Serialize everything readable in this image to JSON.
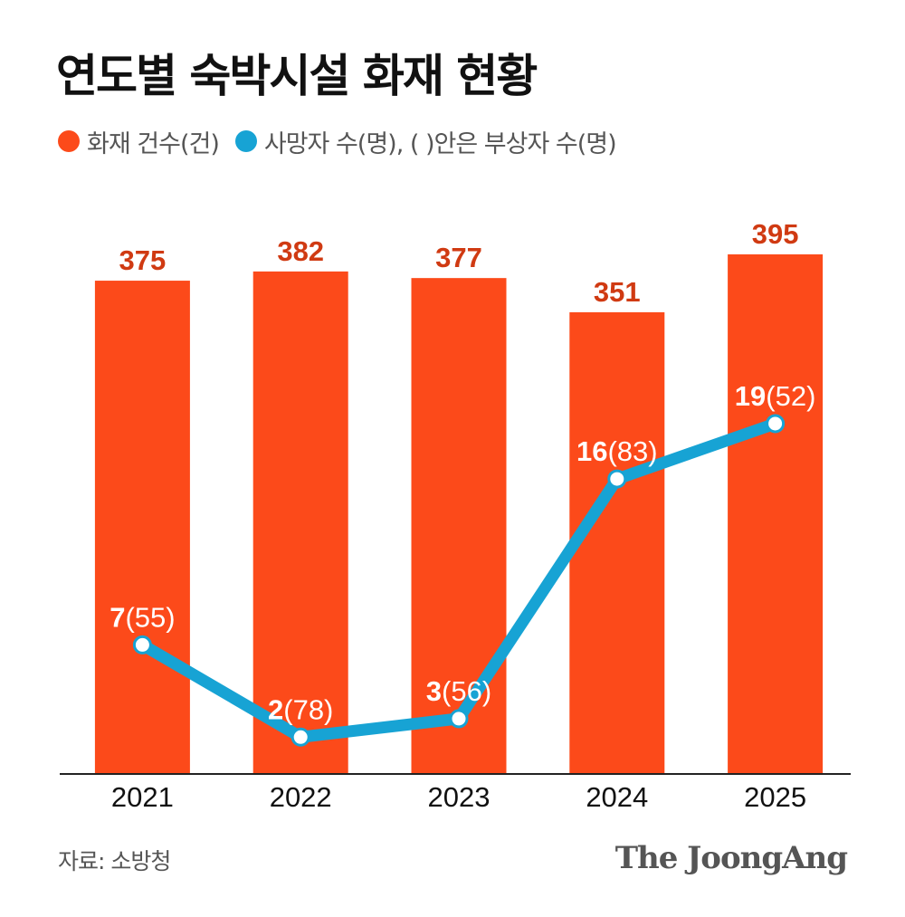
{
  "title": "연도별 숙박시설 화재 현황",
  "legend": {
    "fires_label": "화재 건수(건)",
    "deaths_label": "사망자 수(명), ( )안은 부상자 수(명)"
  },
  "source": "자료: 소방청",
  "brand": "The JoongAng",
  "colors": {
    "bar": "#fc4a1a",
    "bar_label": "#d03a12",
    "line": "#17a3d4",
    "axis": "#222222"
  },
  "chart_data": {
    "type": "bar",
    "categories": [
      "2021",
      "2022",
      "2023",
      "2024",
      "2025"
    ],
    "series": [
      {
        "name": "화재 건수(건)",
        "type": "bar",
        "values": [
          375,
          382,
          377,
          351,
          395
        ],
        "labels": [
          "375",
          "382",
          "377",
          "351",
          "395"
        ]
      },
      {
        "name": "사망자 수(명)",
        "type": "line",
        "values": [
          7,
          2,
          3,
          16,
          19
        ],
        "injured": [
          55,
          78,
          56,
          83,
          52
        ],
        "value_labels": [
          "7",
          "2",
          "3",
          "16",
          "19"
        ],
        "injured_labels": [
          "(55)",
          "(78)",
          "(56)",
          "(83)",
          "(52)"
        ]
      }
    ],
    "xlabel": "",
    "ylabel": "",
    "ylim": [
      0,
      395
    ],
    "y2lim": [
      0,
      27
    ],
    "grid": false
  }
}
